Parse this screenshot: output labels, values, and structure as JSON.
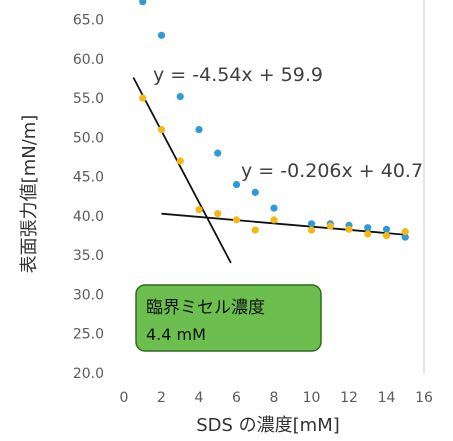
{
  "chart_data": {
    "type": "scatter",
    "xlabel": "SDS の濃度[mM]",
    "ylabel": "表面張力値[mN/m]",
    "xlim": [
      0,
      16
    ],
    "ylim": [
      20,
      67.5
    ],
    "xticks": [
      "0",
      "2",
      "4",
      "6",
      "8",
      "10",
      "12",
      "14",
      "16"
    ],
    "yticks": [
      "20.0",
      "25.0",
      "30.0",
      "35.0",
      "40.0",
      "45.0",
      "50.0",
      "55.0",
      "60.0",
      "65.0"
    ],
    "grid": false,
    "series": [
      {
        "color": "#2e9bd6",
        "points": [
          {
            "x": 1,
            "y": 67.3
          },
          {
            "x": 2,
            "y": 63.0
          },
          {
            "x": 3,
            "y": 55.2
          },
          {
            "x": 4,
            "y": 51.0
          },
          {
            "x": 5,
            "y": 48.0
          },
          {
            "x": 6,
            "y": 44.0
          },
          {
            "x": 7,
            "y": 43.0
          },
          {
            "x": 8,
            "y": 41.0
          },
          {
            "x": 10,
            "y": 39.0
          },
          {
            "x": 11,
            "y": 39.0
          },
          {
            "x": 12,
            "y": 38.8
          },
          {
            "x": 13,
            "y": 38.5
          },
          {
            "x": 14,
            "y": 38.3
          },
          {
            "x": 15,
            "y": 37.3
          }
        ]
      },
      {
        "color": "#f5b815",
        "points": [
          {
            "x": 1,
            "y": 55.0
          },
          {
            "x": 2,
            "y": 51.0
          },
          {
            "x": 3,
            "y": 47.0
          },
          {
            "x": 4,
            "y": 40.8
          },
          {
            "x": 5,
            "y": 40.3
          },
          {
            "x": 6,
            "y": 39.5
          },
          {
            "x": 7,
            "y": 38.2
          },
          {
            "x": 8,
            "y": 39.5
          },
          {
            "x": 10,
            "y": 38.2
          },
          {
            "x": 11,
            "y": 38.7
          },
          {
            "x": 12,
            "y": 38.3
          },
          {
            "x": 13,
            "y": 37.7
          },
          {
            "x": 14,
            "y": 37.5
          },
          {
            "x": 15,
            "y": 38.0
          }
        ]
      }
    ],
    "trendlines": [
      {
        "equation": "y = -4.54x + 59.9",
        "slope": -4.54,
        "intercept": 59.9,
        "x_range": [
          0.5,
          5.7
        ],
        "color": "#111111"
      },
      {
        "equation": "y = -0.206x + 40.7",
        "slope": -0.206,
        "intercept": 40.7,
        "x_range": [
          2,
          15
        ],
        "color": "#111111"
      }
    ],
    "annotation": {
      "line1": "臨界ミセル濃度",
      "line2": "4.4 mM",
      "fill": "#6cbf4f",
      "border": "#2f6b1f"
    }
  }
}
